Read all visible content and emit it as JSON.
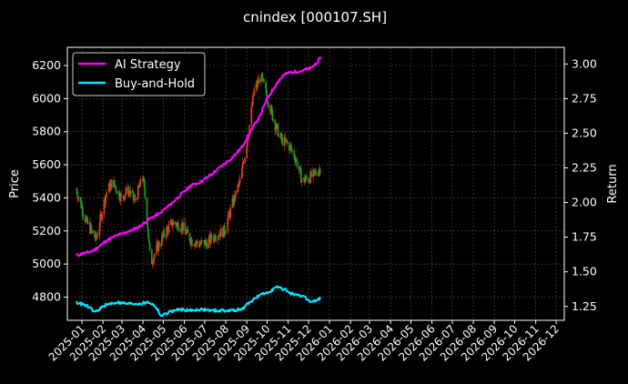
{
  "chart_data": {
    "type": "line",
    "title": "cnindex [000107.SH]",
    "ylabel_left": "Price",
    "ylabel_right": "Return",
    "xlabel": "",
    "x_ticks": [
      "2025-01",
      "2025-02",
      "2025-03",
      "2025-04",
      "2025-05",
      "2025-06",
      "2025-07",
      "2025-08",
      "2025-09",
      "2025-10",
      "2025-11",
      "2025-12",
      "2026-01",
      "2026-02",
      "2026-03",
      "2026-04",
      "2026-05",
      "2026-06",
      "2026-07",
      "2026-08",
      "2026-09",
      "2026-10",
      "2026-11",
      "2026-12"
    ],
    "y_left_ticks": [
      4800,
      5000,
      5200,
      5400,
      5600,
      5800,
      6000,
      6200
    ],
    "y_right_ticks": [
      "1.25",
      "1.50",
      "1.75",
      "2.00",
      "2.25",
      "2.50",
      "2.75",
      "3.00"
    ],
    "ylim_left": [
      4660,
      6310
    ],
    "ylim_right": [
      1.15,
      3.12
    ],
    "grid": true,
    "legend_position": "top-left",
    "candlestick_close_approx": {
      "x": [
        "2024-12-24",
        "2025-01-08",
        "2025-01-22",
        "2025-02-05",
        "2025-02-15",
        "2025-02-28",
        "2025-03-10",
        "2025-03-20",
        "2025-04-01",
        "2025-04-07",
        "2025-04-12",
        "2025-04-22",
        "2025-05-05",
        "2025-05-15",
        "2025-05-28",
        "2025-06-10",
        "2025-06-22",
        "2025-07-05",
        "2025-07-18",
        "2025-07-30",
        "2025-08-10",
        "2025-08-22",
        "2025-09-02",
        "2025-09-12",
        "2025-09-22",
        "2025-10-02",
        "2025-10-12",
        "2025-10-22",
        "2025-11-02",
        "2025-11-12",
        "2025-11-22",
        "2025-12-02",
        "2025-12-12",
        "2025-12-18"
      ],
      "close": [
        5450,
        5250,
        5150,
        5420,
        5500,
        5400,
        5450,
        5380,
        5530,
        5280,
        5000,
        5100,
        5200,
        5250,
        5230,
        5150,
        5120,
        5130,
        5180,
        5200,
        5350,
        5500,
        5750,
        6050,
        6130,
        6000,
        5850,
        5750,
        5720,
        5640,
        5500,
        5520,
        5550,
        5580
      ]
    },
    "series": [
      {
        "name": "AI Strategy",
        "color": "#ff00ff",
        "x": [
          "2024-12-24",
          "2025-01-10",
          "2025-01-20",
          "2025-02-05",
          "2025-02-20",
          "2025-03-10",
          "2025-03-25",
          "2025-04-10",
          "2025-04-25",
          "2025-05-10",
          "2025-05-25",
          "2025-06-10",
          "2025-06-25",
          "2025-07-10",
          "2025-07-25",
          "2025-08-10",
          "2025-08-25",
          "2025-09-05",
          "2025-09-20",
          "2025-10-01",
          "2025-10-15",
          "2025-10-25",
          "2025-11-05",
          "2025-11-20",
          "2025-12-05",
          "2025-12-15",
          "2025-12-20"
        ],
        "values": [
          1.62,
          1.64,
          1.66,
          1.72,
          1.76,
          1.79,
          1.82,
          1.88,
          1.92,
          1.98,
          2.05,
          2.12,
          2.15,
          2.2,
          2.26,
          2.32,
          2.4,
          2.5,
          2.62,
          2.75,
          2.86,
          2.92,
          2.94,
          2.95,
          2.97,
          3.02,
          3.05
        ]
      },
      {
        "name": "Buy-and-Hold",
        "color": "#00e5ff",
        "x": [
          "2024-12-24",
          "2025-01-10",
          "2025-01-20",
          "2025-02-05",
          "2025-02-20",
          "2025-03-10",
          "2025-03-25",
          "2025-04-10",
          "2025-04-20",
          "2025-04-28",
          "2025-05-10",
          "2025-05-25",
          "2025-06-10",
          "2025-06-25",
          "2025-07-10",
          "2025-07-25",
          "2025-08-10",
          "2025-08-25",
          "2025-09-05",
          "2025-09-20",
          "2025-10-01",
          "2025-10-15",
          "2025-10-28",
          "2025-11-10",
          "2025-11-25",
          "2025-12-05",
          "2025-12-15",
          "2025-12-20"
        ],
        "values": [
          1.28,
          1.25,
          1.21,
          1.26,
          1.28,
          1.27,
          1.27,
          1.28,
          1.25,
          1.18,
          1.21,
          1.23,
          1.22,
          1.23,
          1.22,
          1.22,
          1.22,
          1.23,
          1.28,
          1.33,
          1.35,
          1.39,
          1.37,
          1.33,
          1.32,
          1.28,
          1.3,
          1.31
        ]
      }
    ]
  }
}
